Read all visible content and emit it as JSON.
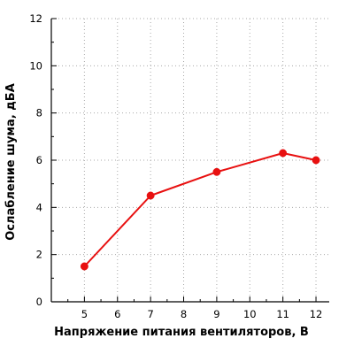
{
  "chart_data": {
    "type": "line",
    "title": "",
    "xlabel": "Напряжение питания вентиляторов, В",
    "ylabel": "Ослабление шума, дБА",
    "xlim": [
      4,
      12.4
    ],
    "ylim": [
      0,
      12
    ],
    "x_ticks": [
      5,
      6,
      7,
      8,
      9,
      10,
      11,
      12
    ],
    "y_ticks": [
      0,
      2,
      4,
      6,
      8,
      10,
      12
    ],
    "x_minor_step": 0.5,
    "y_minor_step": 1,
    "grid": true,
    "grid_style": "dotted",
    "legend": "none",
    "series": [
      {
        "x": [
          5,
          7,
          9,
          11,
          12
        ],
        "values": [
          1.5,
          4.5,
          5.5,
          6.3,
          6.0
        ],
        "color": "#e81010",
        "marker": "circle"
      }
    ]
  }
}
